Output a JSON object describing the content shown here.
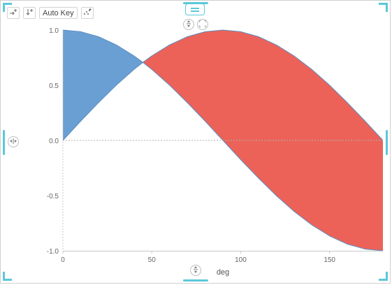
{
  "toolbar": {
    "auto_key_label": "Auto Key",
    "icons": [
      "add-series-icon",
      "sort-down-icon",
      "scatter-icon"
    ]
  },
  "handles": {
    "icons": [
      "move-icon",
      "split-vertical-icon",
      "fullscreen-icon",
      "split-horizontal-icon"
    ]
  },
  "colors": {
    "series_top": "#6a9fd3",
    "series_bottom": "#ec6259",
    "border_line": "#5a8fc2",
    "accent": "#5bc8d9"
  },
  "chart_data": {
    "type": "area",
    "x": [
      0,
      10,
      20,
      30,
      40,
      45,
      50,
      60,
      70,
      80,
      90,
      100,
      110,
      120,
      130,
      140,
      150,
      160,
      170,
      180
    ],
    "series": [
      {
        "values": [
          1.0,
          0.985,
          0.94,
          0.866,
          0.766,
          0.707,
          0.643,
          0.5,
          0.342,
          0.174,
          0.0,
          -0.174,
          -0.342,
          -0.5,
          -0.643,
          -0.766,
          -0.866,
          -0.94,
          -0.985,
          -1.0
        ]
      },
      {
        "values": [
          0.0,
          0.174,
          0.342,
          0.5,
          0.643,
          0.707,
          0.766,
          0.866,
          0.94,
          0.985,
          1.0,
          0.985,
          0.94,
          0.866,
          0.766,
          0.643,
          0.5,
          0.342,
          0.174,
          0.0
        ]
      }
    ],
    "xlabel": "deg",
    "ylabel": "",
    "xlim": [
      0,
      180
    ],
    "ylim": [
      -1.0,
      1.0
    ],
    "x_ticks": [
      0,
      50,
      100,
      150
    ],
    "y_ticks": [
      1.0,
      0.5,
      0.0,
      -0.5,
      -1.0
    ],
    "y_tick_labels": [
      "1.0",
      "0.5",
      "0.0",
      "-0.5",
      "-1.0"
    ],
    "zero_line": true,
    "grid": false,
    "legend": "none"
  }
}
